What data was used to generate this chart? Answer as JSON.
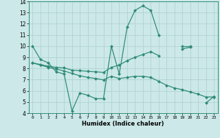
{
  "xlabel": "Humidex (Indice chaleur)",
  "x": [
    0,
    1,
    2,
    3,
    4,
    5,
    6,
    7,
    8,
    9,
    10,
    11,
    12,
    13,
    14,
    15,
    16,
    17,
    18,
    19,
    20,
    21,
    22,
    23
  ],
  "y_main": [
    10.0,
    8.8,
    8.5,
    7.7,
    7.5,
    4.2,
    5.8,
    5.6,
    5.3,
    5.3,
    10.0,
    7.5,
    11.7,
    13.2,
    13.6,
    13.2,
    11.0,
    null,
    null,
    10.0,
    10.0,
    null,
    4.9,
    5.5
  ],
  "y_trend1": [
    8.5,
    8.35,
    8.2,
    8.1,
    8.05,
    7.85,
    7.8,
    7.75,
    7.7,
    7.65,
    8.1,
    8.3,
    8.7,
    9.0,
    9.25,
    9.5,
    9.15,
    null,
    null,
    9.75,
    9.9,
    null,
    null,
    null
  ],
  "y_trend2": [
    8.5,
    8.3,
    8.1,
    7.95,
    7.78,
    7.55,
    7.35,
    7.2,
    7.1,
    6.98,
    7.3,
    7.1,
    7.2,
    7.3,
    7.3,
    7.2,
    6.85,
    6.5,
    6.25,
    6.1,
    5.9,
    5.7,
    5.45,
    5.45
  ],
  "colors": {
    "line": "#2e8b76",
    "background": "#cce8e8",
    "grid": "#aacfcf"
  },
  "ylim": [
    4,
    14
  ],
  "xlim": [
    -0.5,
    23.5
  ],
  "yticks": [
    4,
    5,
    6,
    7,
    8,
    9,
    10,
    11,
    12,
    13,
    14
  ],
  "xticks": [
    0,
    1,
    2,
    3,
    4,
    5,
    6,
    7,
    8,
    9,
    10,
    11,
    12,
    13,
    14,
    15,
    16,
    17,
    18,
    19,
    20,
    21,
    22,
    23
  ]
}
